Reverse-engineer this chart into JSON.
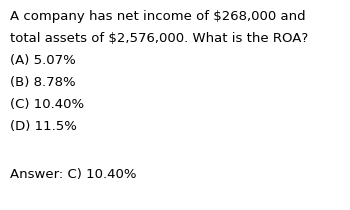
{
  "background_color": "#ffffff",
  "text_color": "#000000",
  "question_line1": "A company has net income of $268,000 and",
  "question_line2": "total assets of $2,576,000. What is the ROA?",
  "options": [
    "(A) 5.07%",
    "(B) 8.78%",
    "(C) 10.40%",
    "(D) 11.5%"
  ],
  "answer": "Answer: C) 10.40%",
  "font_size": 9.5,
  "answer_font_size": 9.5,
  "fig_width": 3.5,
  "fig_height": 2.1,
  "dpi": 100
}
